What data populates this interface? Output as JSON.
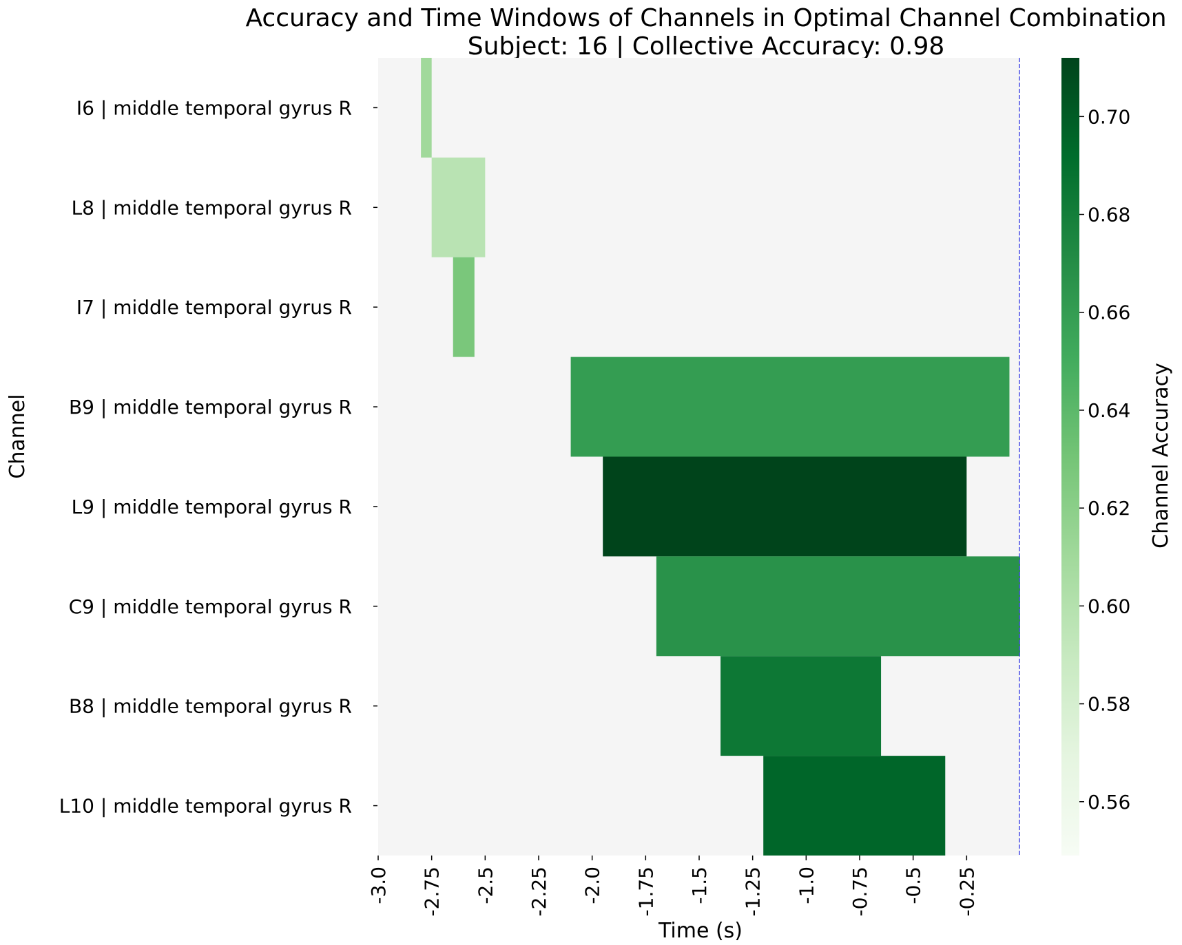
{
  "chart_data": {
    "type": "heatmap",
    "title": "Accuracy and Time Windows of Channels in Optimal Channel Combination",
    "subtitle": "Subject: 16 | Collective Accuracy: 0.98",
    "xlabel": "Time (s)",
    "ylabel": "Channel",
    "colorbar_label": "Channel Accuracy",
    "xlim": [
      -3.0,
      0.0
    ],
    "x_ticks": [
      -3.0,
      -2.75,
      -2.5,
      -2.25,
      -2.0,
      -1.75,
      -1.5,
      -1.25,
      -1.0,
      -0.75,
      -0.5,
      -0.25
    ],
    "x_tick_labels": [
      "-3.0",
      "-2.75",
      "-2.5",
      "-2.25",
      "-2.0",
      "-1.75",
      "-1.5",
      "-1.25",
      "-1.0",
      "-0.75",
      "-0.5",
      "-0.25"
    ],
    "clim": [
      0.549,
      0.712
    ],
    "colorbar_ticks": [
      0.56,
      0.58,
      0.6,
      0.62,
      0.64,
      0.66,
      0.68,
      0.7
    ],
    "colorbar_tick_labels": [
      "0.56",
      "0.58",
      "0.60",
      "0.62",
      "0.64",
      "0.66",
      "0.68",
      "0.70"
    ],
    "colormap": [
      "#f7fcf5",
      "#e5f5e0",
      "#c7e9c0",
      "#a1d99b",
      "#74c476",
      "#41ab5d",
      "#238b45",
      "#006d2c",
      "#00441b"
    ],
    "background_color": "#f5f5f5",
    "reference_line": {
      "x": 0.0,
      "color": "#4a4ee6",
      "style": "dashed"
    },
    "channels": [
      {
        "label": "I6 | middle temporal gyrus R",
        "start": -2.8,
        "end": -2.75,
        "accuracy": 0.61
      },
      {
        "label": "L8 | middle temporal gyrus R",
        "start": -2.75,
        "end": -2.5,
        "accuracy": 0.597
      },
      {
        "label": "I7 | middle temporal gyrus R",
        "start": -2.65,
        "end": -2.55,
        "accuracy": 0.628
      },
      {
        "label": "B9 | middle temporal gyrus R",
        "start": -2.1,
        "end": -0.05,
        "accuracy": 0.66
      },
      {
        "label": "L9 | middle temporal gyrus R",
        "start": -1.95,
        "end": -0.25,
        "accuracy": 0.712
      },
      {
        "label": "C9 | middle temporal gyrus R",
        "start": -1.7,
        "end": 0.0,
        "accuracy": 0.667
      },
      {
        "label": "B8 | middle temporal gyrus R",
        "start": -1.4,
        "end": -0.65,
        "accuracy": 0.684
      },
      {
        "label": "L10 | middle temporal gyrus R",
        "start": -1.2,
        "end": -0.35,
        "accuracy": 0.695
      }
    ]
  }
}
